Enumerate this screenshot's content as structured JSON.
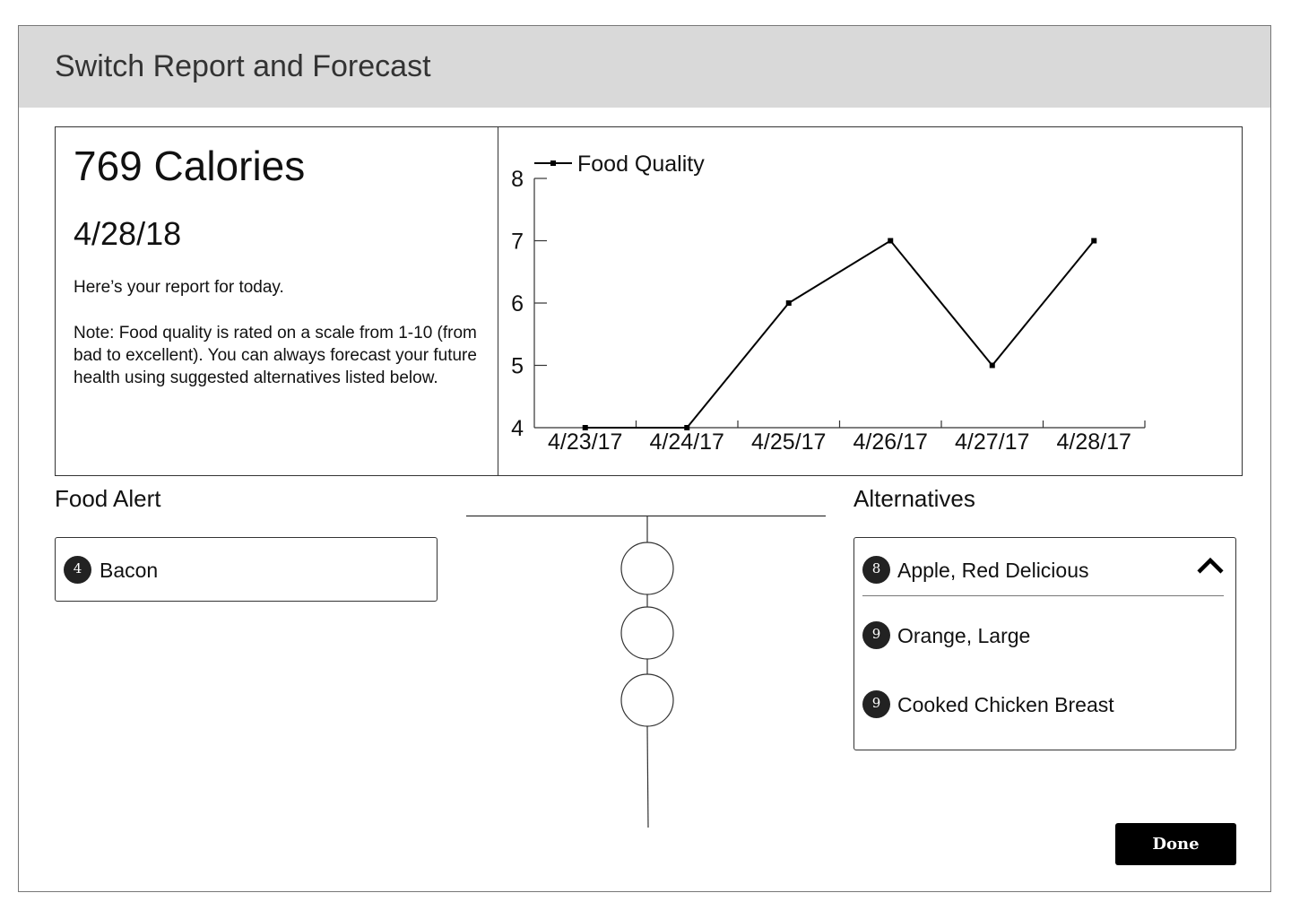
{
  "header": {
    "title": "Switch Report and Forecast"
  },
  "report": {
    "calories": "769 Calories",
    "date": "4/28/18",
    "message": "Here’s your report for today.",
    "note": "Note: Food quality is rated on a scale from 1-10 (from bad to excellent). You can always forecast your future health using suggested alternatives listed below."
  },
  "chart_data": {
    "type": "line",
    "categories": [
      "4/23/17",
      "4/24/17",
      "4/25/17",
      "4/26/17",
      "4/27/17",
      "4/28/17"
    ],
    "series": [
      {
        "name": "Food Quality",
        "values": [
          4,
          4,
          6,
          7,
          5,
          7
        ]
      }
    ],
    "ylim": [
      4,
      8
    ],
    "yticks": [
      "4",
      "5",
      "6",
      "7",
      "8"
    ],
    "legend_position": "top-left",
    "grid": false,
    "color": "#000000"
  },
  "food_alert": {
    "title": "Food Alert",
    "items": [
      {
        "score": "4",
        "label": "Bacon"
      }
    ]
  },
  "alternatives": {
    "title": "Alternatives",
    "items": [
      {
        "score": "8",
        "label": "Apple, Red Delicious"
      },
      {
        "score": "9",
        "label": "Orange, Large"
      },
      {
        "score": "9",
        "label": "Cooked Chicken Breast"
      }
    ],
    "collapse_icon": "chevron-up-icon"
  },
  "actions": {
    "done_label": "Done"
  }
}
